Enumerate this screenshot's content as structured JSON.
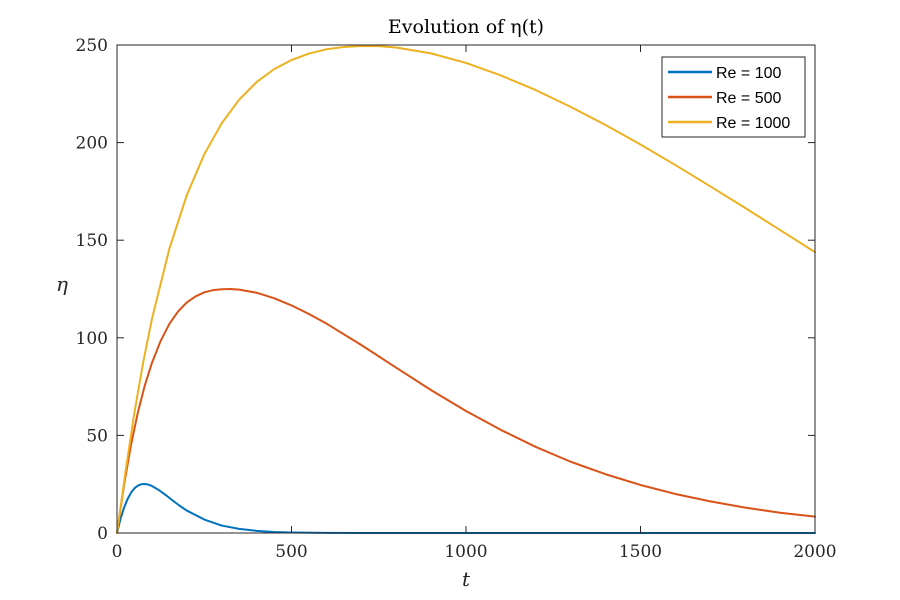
{
  "chart_data": {
    "type": "line",
    "title": "Evolution of η(t)",
    "xlabel": "t",
    "ylabel": "η",
    "xlim": [
      0,
      2000
    ],
    "ylim": [
      0,
      250
    ],
    "x_ticks": [
      "0",
      "500",
      "1000",
      "1500",
      "2000"
    ],
    "y_ticks": [
      "0",
      "50",
      "100",
      "150",
      "200",
      "250"
    ],
    "grid": false,
    "legend_position": "top-right",
    "series": [
      {
        "name": "Re = 100",
        "color": "#0072BD",
        "points": [
          [
            0,
            0
          ],
          [
            10,
            7.2
          ],
          [
            20,
            12.9
          ],
          [
            30,
            17.3
          ],
          [
            40,
            20.6
          ],
          [
            50,
            22.9
          ],
          [
            60,
            24.3
          ],
          [
            70,
            25.0
          ],
          [
            80,
            25.1
          ],
          [
            90,
            24.8
          ],
          [
            100,
            24.1
          ],
          [
            120,
            22.0
          ],
          [
            140,
            19.4
          ],
          [
            160,
            16.6
          ],
          [
            180,
            13.9
          ],
          [
            200,
            11.5
          ],
          [
            250,
            6.9
          ],
          [
            300,
            3.8
          ],
          [
            350,
            2.1
          ],
          [
            400,
            1.1
          ],
          [
            450,
            0.5
          ],
          [
            500,
            0.25
          ],
          [
            600,
            0.05
          ],
          [
            700,
            0.01
          ],
          [
            800,
            0
          ],
          [
            1000,
            0
          ],
          [
            1200,
            0
          ],
          [
            1400,
            0
          ],
          [
            1600,
            0
          ],
          [
            1800,
            0
          ],
          [
            2000,
            0
          ]
        ]
      },
      {
        "name": "Re = 500",
        "color": "#D95319",
        "points": [
          [
            0,
            0
          ],
          [
            20,
            24.5
          ],
          [
            40,
            45.0
          ],
          [
            60,
            61.9
          ],
          [
            80,
            75.8
          ],
          [
            100,
            87.1
          ],
          [
            125,
            98.4
          ],
          [
            150,
            107.1
          ],
          [
            175,
            113.5
          ],
          [
            200,
            118.1
          ],
          [
            225,
            121.2
          ],
          [
            250,
            123.3
          ],
          [
            275,
            124.4
          ],
          [
            300,
            124.9
          ],
          [
            325,
            125.0
          ],
          [
            350,
            124.7
          ],
          [
            400,
            123.1
          ],
          [
            450,
            120.3
          ],
          [
            500,
            116.6
          ],
          [
            550,
            112.2
          ],
          [
            600,
            107.3
          ],
          [
            700,
            96.3
          ],
          [
            800,
            84.7
          ],
          [
            900,
            73.2
          ],
          [
            1000,
            62.5
          ],
          [
            1100,
            52.8
          ],
          [
            1200,
            44.1
          ],
          [
            1300,
            36.5
          ],
          [
            1400,
            30.1
          ],
          [
            1500,
            24.6
          ],
          [
            1600,
            20.0
          ],
          [
            1700,
            16.2
          ],
          [
            1800,
            13.0
          ],
          [
            1900,
            10.4
          ],
          [
            2000,
            8.4
          ]
        ]
      },
      {
        "name": "Re = 1000",
        "color": "#EDB120",
        "points": [
          [
            0,
            0
          ],
          [
            25,
            32.1
          ],
          [
            50,
            61.8
          ],
          [
            75,
            87.4
          ],
          [
            100,
            109.6
          ],
          [
            150,
            145.6
          ],
          [
            200,
            173.1
          ],
          [
            250,
            194.0
          ],
          [
            300,
            209.9
          ],
          [
            350,
            222.0
          ],
          [
            400,
            231.0
          ],
          [
            450,
            237.6
          ],
          [
            500,
            242.3
          ],
          [
            550,
            245.6
          ],
          [
            600,
            247.8
          ],
          [
            650,
            249.0
          ],
          [
            700,
            249.5
          ],
          [
            750,
            249.4
          ],
          [
            800,
            248.7
          ],
          [
            900,
            245.7
          ],
          [
            1000,
            240.8
          ],
          [
            1100,
            234.4
          ],
          [
            1200,
            226.9
          ],
          [
            1300,
            218.3
          ],
          [
            1400,
            209.0
          ],
          [
            1500,
            199.0
          ],
          [
            1600,
            188.5
          ],
          [
            1700,
            177.6
          ],
          [
            1800,
            166.5
          ],
          [
            1900,
            155.2
          ],
          [
            2000,
            143.9
          ]
        ]
      }
    ]
  }
}
